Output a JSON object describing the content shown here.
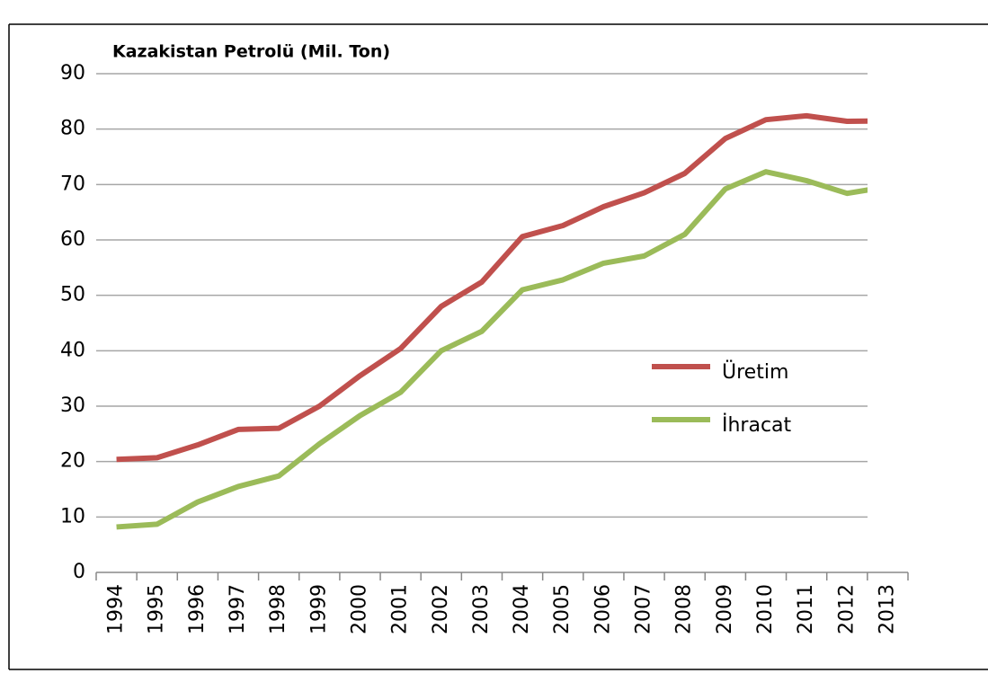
{
  "chart_data": {
    "type": "line",
    "title": "Kazakistan Petrolü (Mil. Ton)",
    "categories": [
      "1994",
      "1995",
      "1996",
      "1997",
      "1998",
      "1999",
      "2000",
      "2001",
      "2002",
      "2003",
      "2004",
      "2005",
      "2006",
      "2007",
      "2008",
      "2009",
      "2010",
      "2011",
      "2012",
      "2013"
    ],
    "series": [
      {
        "name": "Üretim",
        "color": "#c0504d",
        "values": [
          20.4,
          20.7,
          23,
          25.8,
          26,
          30,
          35.5,
          40.4,
          48,
          52.4,
          60.6,
          62.6,
          66,
          68.5,
          72,
          78.3,
          81.7,
          82.4,
          81.4,
          81.5
        ]
      },
      {
        "name": "İhracat",
        "color": "#9bbb59",
        "values": [
          8.2,
          8.7,
          12.7,
          15.5,
          17.4,
          23.2,
          28.3,
          32.5,
          40,
          43.5,
          51,
          52.8,
          55.8,
          57.1,
          61,
          69.2,
          72.3,
          70.7,
          68.4,
          69.6
        ]
      }
    ],
    "ylim": [
      0,
      90
    ],
    "yticks": [
      0,
      10,
      20,
      30,
      40,
      50,
      60,
      70,
      80,
      90
    ],
    "grid": true,
    "legend": "right"
  }
}
